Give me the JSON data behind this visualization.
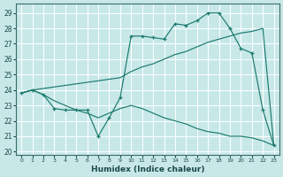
{
  "xlabel": "Humidex (Indice chaleur)",
  "background_color": "#c8e8e8",
  "grid_color": "#ffffff",
  "line_color": "#1a7a6e",
  "xlim": [
    -0.5,
    23.5
  ],
  "ylim": [
    19.8,
    29.6
  ],
  "yticks": [
    20,
    21,
    22,
    23,
    24,
    25,
    26,
    27,
    28,
    29
  ],
  "xtick_labels": [
    "0",
    "1",
    "2",
    "3",
    "4",
    "5",
    "6",
    "7",
    "8",
    "9",
    "10",
    "11",
    "12",
    "13",
    "14",
    "15",
    "16",
    "17",
    "18",
    "19",
    "20",
    "21",
    "22",
    "23"
  ],
  "line1_x": [
    0,
    1,
    2,
    3,
    4,
    5,
    6,
    7,
    8,
    9,
    10,
    11,
    12,
    13,
    14,
    15,
    16,
    17,
    18,
    19,
    20,
    21,
    22,
    23
  ],
  "line1_y": [
    23.8,
    24.0,
    23.7,
    22.8,
    22.7,
    22.7,
    22.7,
    21.0,
    22.2,
    23.5,
    27.5,
    27.5,
    27.4,
    27.3,
    28.3,
    28.2,
    28.5,
    29.0,
    29.0,
    28.0,
    26.7,
    26.4,
    22.7,
    20.4
  ],
  "line2_x": [
    0,
    1,
    9,
    10,
    11,
    12,
    13,
    14,
    15,
    16,
    17,
    18,
    19,
    20,
    21,
    22,
    23
  ],
  "line2_y": [
    23.8,
    24.0,
    24.8,
    25.2,
    25.5,
    25.7,
    26.0,
    26.3,
    26.5,
    26.8,
    27.1,
    27.3,
    27.5,
    27.7,
    27.8,
    28.0,
    20.4
  ],
  "line3_x": [
    0,
    1,
    2,
    3,
    4,
    5,
    6,
    7,
    8,
    9,
    10,
    11,
    12,
    13,
    14,
    15,
    16,
    17,
    18,
    19,
    20,
    21,
    22,
    23
  ],
  "line3_y": [
    23.8,
    24.0,
    23.7,
    23.3,
    23.0,
    22.7,
    22.5,
    22.2,
    22.5,
    22.8,
    23.0,
    22.8,
    22.5,
    22.2,
    22.0,
    21.8,
    21.5,
    21.3,
    21.2,
    21.0,
    21.0,
    20.9,
    20.7,
    20.4
  ]
}
